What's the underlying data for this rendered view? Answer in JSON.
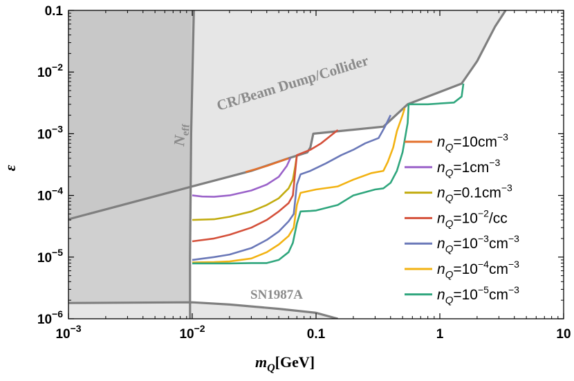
{
  "chart_data": {
    "type": "line",
    "title": "",
    "xlabel": "m_Q[GeV]",
    "xlabel_parts": {
      "main": "m",
      "sub": "Q",
      "unit": "[GeV]"
    },
    "ylabel": "ε",
    "x_scale": "log",
    "y_scale": "log",
    "xlim": [
      0.001,
      10
    ],
    "ylim": [
      1e-06,
      0.1
    ],
    "grid": false,
    "legend_position": "right",
    "x_ticks": [
      {
        "value": 0.001,
        "base": "10",
        "exp": "−3",
        "label": ""
      },
      {
        "value": 0.01,
        "base": "10",
        "exp": "−2",
        "label": ""
      },
      {
        "value": 0.1,
        "base": "",
        "exp": "",
        "label": "0.1"
      },
      {
        "value": 1,
        "base": "",
        "exp": "",
        "label": "1"
      },
      {
        "value": 10,
        "base": "",
        "exp": "",
        "label": "10"
      }
    ],
    "y_ticks": [
      {
        "value": 1e-06,
        "base": "10",
        "exp": "−6",
        "label": ""
      },
      {
        "value": 1e-05,
        "base": "10",
        "exp": "−5",
        "label": ""
      },
      {
        "value": 0.0001,
        "base": "10",
        "exp": "−4",
        "label": ""
      },
      {
        "value": 0.001,
        "base": "10",
        "exp": "−3",
        "label": ""
      },
      {
        "value": 0.01,
        "base": "10",
        "exp": "−2",
        "label": ""
      },
      {
        "value": 0.1,
        "base": "",
        "exp": "",
        "label": "0.1"
      }
    ],
    "regions": [
      {
        "label": "CR/Beam Dump/Collider",
        "fill": "#e6e6e6",
        "boundary": [
          [
            0.001,
            4.1e-05
          ],
          [
            0.01,
            0.00014
          ],
          [
            0.03,
            0.00025
          ],
          [
            0.06,
            0.0004
          ],
          [
            0.085,
            0.0005
          ],
          [
            0.09,
            0.0006
          ],
          [
            0.095,
            0.001
          ],
          [
            0.35,
            0.0013
          ],
          [
            0.55,
            0.003
          ],
          [
            1.5,
            0.0065
          ],
          [
            2.0,
            0.015
          ],
          [
            2.8,
            0.055
          ],
          [
            3.4,
            0.1
          ]
        ]
      },
      {
        "label": "N_eff",
        "fill": "#d0d0d0",
        "boundary": [
          [
            0.0096,
            1e-06
          ],
          [
            0.0096,
            1e-05
          ],
          [
            0.0098,
            0.001
          ],
          [
            0.0103,
            0.1
          ]
        ]
      },
      {
        "label": "SN1987A",
        "fill": "#e6e6e6",
        "boundary": [
          [
            0.001,
            1.8e-06
          ],
          [
            0.01,
            1.85e-06
          ],
          [
            0.02,
            1.7e-06
          ],
          [
            0.05,
            1.45e-06
          ],
          [
            0.1,
            1.25e-06
          ],
          [
            0.15,
            1e-06
          ]
        ]
      }
    ],
    "series": [
      {
        "name": "n_Q=10cm^-3",
        "legend_label": {
          "pre": "=10cm",
          "exp": "−3",
          "post": ""
        },
        "color": "#e3702c",
        "points": [
          [
            0.027,
            0.00024
          ],
          [
            0.04,
            0.0003
          ],
          [
            0.06,
            0.0004
          ]
        ]
      },
      {
        "name": "n_Q=1cm^-3",
        "legend_label": {
          "pre": "=1cm",
          "exp": "−3",
          "post": ""
        },
        "color": "#9a62c9",
        "points": [
          [
            0.01,
            0.0001
          ],
          [
            0.012,
            9.6e-05
          ],
          [
            0.015,
            9.5e-05
          ],
          [
            0.02,
            0.0001
          ],
          [
            0.03,
            0.00012
          ],
          [
            0.04,
            0.00015
          ],
          [
            0.05,
            0.0002
          ],
          [
            0.058,
            0.0003
          ],
          [
            0.062,
            0.0004
          ]
        ]
      },
      {
        "name": "n_Q=0.1cm^-3",
        "legend_label": {
          "pre": "=0.1cm",
          "exp": "−3",
          "post": ""
        },
        "color": "#c2ac10",
        "points": [
          [
            0.01,
            4e-05
          ],
          [
            0.015,
            4.1e-05
          ],
          [
            0.02,
            4.5e-05
          ],
          [
            0.03,
            5.5e-05
          ],
          [
            0.04,
            7e-05
          ],
          [
            0.05,
            9e-05
          ],
          [
            0.06,
            0.00013
          ],
          [
            0.065,
            0.00018
          ],
          [
            0.068,
            0.0003
          ],
          [
            0.07,
            0.00045
          ]
        ]
      },
      {
        "name": "n_Q=10^-2/cc",
        "legend_label": {
          "pre": "=10",
          "exp": "−2",
          "post": "/cc"
        },
        "color": "#d4503a",
        "points": [
          [
            0.01,
            1.8e-05
          ],
          [
            0.015,
            2e-05
          ],
          [
            0.02,
            2.3e-05
          ],
          [
            0.03,
            3e-05
          ],
          [
            0.04,
            4e-05
          ],
          [
            0.05,
            5.5e-05
          ],
          [
            0.06,
            7.5e-05
          ],
          [
            0.065,
            0.0001
          ],
          [
            0.068,
            0.00025
          ],
          [
            0.07,
            0.00045
          ],
          [
            0.09,
            0.00055
          ],
          [
            0.11,
            0.0007
          ],
          [
            0.15,
            0.00115
          ]
        ]
      },
      {
        "name": "n_Q=10^-3cm^-3",
        "legend_label": {
          "pre": "=10",
          "exp": "−3",
          "post": "cm"
        },
        "legend_post_exp": "−3",
        "color": "#6a78b8",
        "points": [
          [
            0.01,
            9e-06
          ],
          [
            0.015,
            1e-05
          ],
          [
            0.02,
            1.1e-05
          ],
          [
            0.03,
            1.4e-05
          ],
          [
            0.04,
            1.9e-05
          ],
          [
            0.05,
            2.6e-05
          ],
          [
            0.06,
            3.8e-05
          ],
          [
            0.066,
            5e-05
          ],
          [
            0.07,
            0.00015
          ],
          [
            0.075,
            0.00022
          ],
          [
            0.09,
            0.00025
          ],
          [
            0.12,
            0.00033
          ],
          [
            0.16,
            0.00045
          ],
          [
            0.2,
            0.00055
          ],
          [
            0.25,
            0.0007
          ],
          [
            0.32,
            0.00085
          ],
          [
            0.36,
            0.0013
          ],
          [
            0.4,
            0.002
          ]
        ]
      },
      {
        "name": "n_Q=10^-4cm^-3",
        "legend_label": {
          "pre": "=10",
          "exp": "−4",
          "post": "cm"
        },
        "legend_post_exp": "−3",
        "color": "#f2b212",
        "points": [
          [
            0.01,
            8.2e-06
          ],
          [
            0.015,
            8.3e-06
          ],
          [
            0.02,
            8.5e-06
          ],
          [
            0.03,
            9.5e-06
          ],
          [
            0.04,
            1.2e-05
          ],
          [
            0.05,
            1.6e-05
          ],
          [
            0.06,
            2.2e-05
          ],
          [
            0.066,
            3e-05
          ],
          [
            0.07,
            7e-05
          ],
          [
            0.075,
            0.00011
          ],
          [
            0.1,
            0.000125
          ],
          [
            0.15,
            0.00014
          ],
          [
            0.2,
            0.00018
          ],
          [
            0.28,
            0.00023
          ],
          [
            0.35,
            0.00025
          ],
          [
            0.38,
            0.00035
          ],
          [
            0.42,
            0.0006
          ],
          [
            0.45,
            0.0011
          ],
          [
            0.5,
            0.002
          ],
          [
            0.52,
            0.0026
          ]
        ]
      },
      {
        "name": "n_Q=10^-5cm^-3",
        "legend_label": {
          "pre": "=10",
          "exp": "−5",
          "post": "cm"
        },
        "legend_post_exp": "−3",
        "color": "#2fa67d",
        "points": [
          [
            0.01,
            7.9e-06
          ],
          [
            0.02,
            7.9e-06
          ],
          [
            0.03,
            8e-06
          ],
          [
            0.04,
            8e-06
          ],
          [
            0.05,
            9e-06
          ],
          [
            0.06,
            1.2e-05
          ],
          [
            0.065,
            1.7e-05
          ],
          [
            0.07,
            3.5e-05
          ],
          [
            0.075,
            5.5e-05
          ],
          [
            0.09,
            5.6e-05
          ],
          [
            0.1,
            5.7e-05
          ],
          [
            0.15,
            7e-05
          ],
          [
            0.2,
            0.0001
          ],
          [
            0.3,
            0.000125
          ],
          [
            0.35,
            0.00013
          ],
          [
            0.4,
            0.00016
          ],
          [
            0.45,
            0.00025
          ],
          [
            0.5,
            0.0005
          ],
          [
            0.55,
            0.0015
          ],
          [
            0.56,
            0.003
          ],
          [
            0.8,
            0.003
          ],
          [
            1.3,
            0.0032
          ],
          [
            1.5,
            0.004
          ],
          [
            1.55,
            0.0065
          ]
        ]
      }
    ]
  }
}
